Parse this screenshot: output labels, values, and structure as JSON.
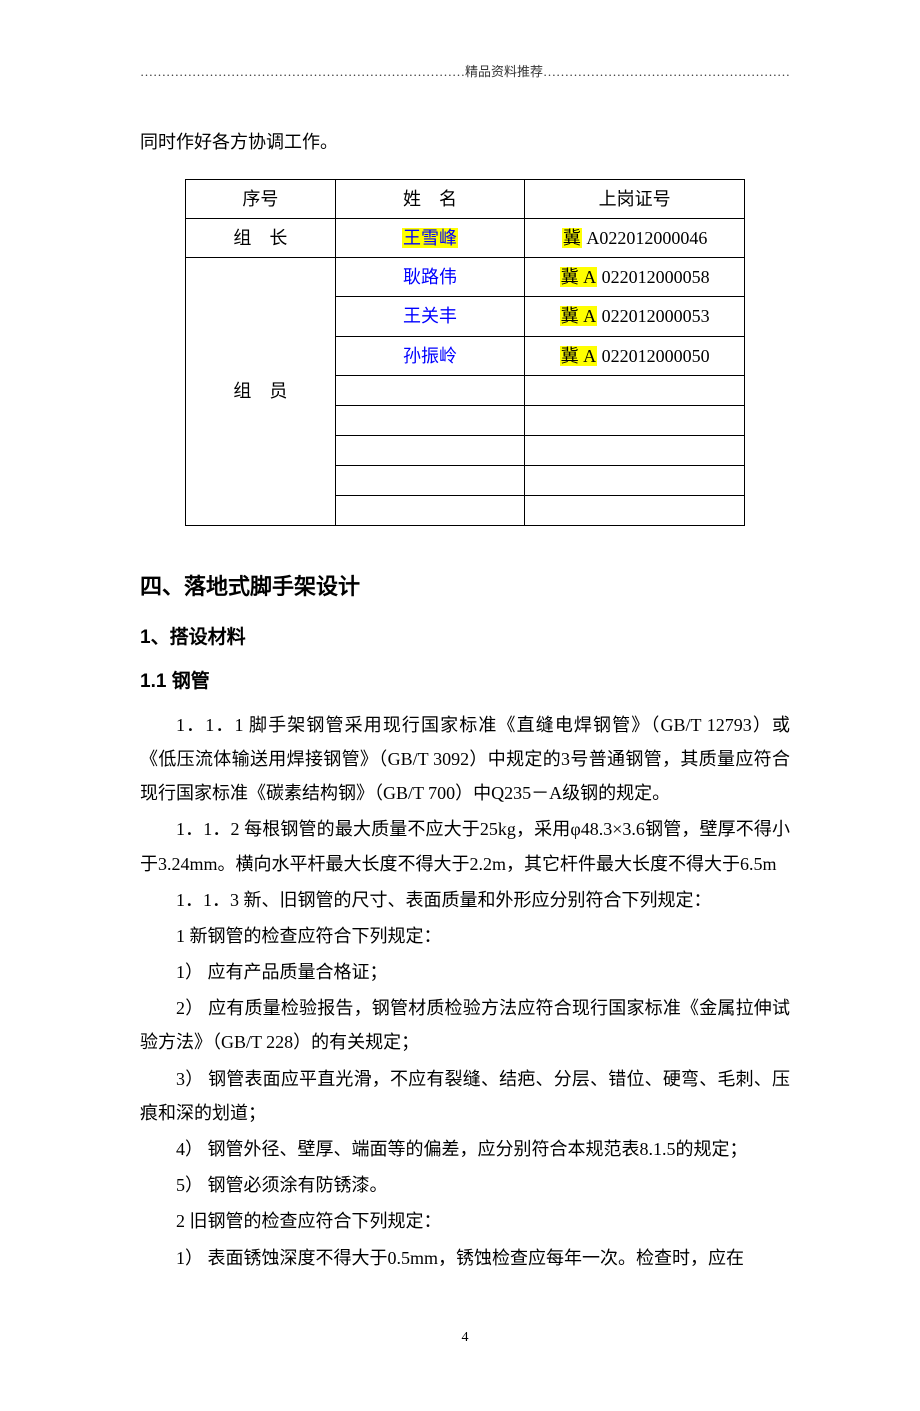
{
  "header_rule": "…………………………………………………………………精品资料推荐…………………………………………………",
  "intro": "同时作好各方协调工作。",
  "table": {
    "header": {
      "seq": "序号",
      "name": "姓　名",
      "cert": "上岗证号"
    },
    "leader_label": "组　长",
    "member_label": "组　员",
    "rows": [
      {
        "name": "王雪峰",
        "cert_prefix": "冀",
        "cert_rest": " A022012000046",
        "hl_name": true,
        "hl_prefix": true
      },
      {
        "name": "耿路伟",
        "cert_prefix": "冀 A",
        "cert_rest": " 022012000058",
        "hl_name": false,
        "hl_prefix": true
      },
      {
        "name": "王关丰",
        "cert_prefix": "冀 A",
        "cert_rest": " 022012000053",
        "hl_name": false,
        "hl_prefix": true
      },
      {
        "name": "孙振岭",
        "cert_prefix": "冀 A",
        "cert_rest": " 022012000050",
        "hl_name": false,
        "hl_prefix": true
      }
    ],
    "empty_member_rows": 5
  },
  "section_title": "四、落地式脚手架设计",
  "sub1_title": "1、搭设材料",
  "sub2_title": "1.1 钢管",
  "paras": [
    "1．1．1 脚手架钢管采用现行国家标准《直缝电焊钢管》（GB/T 12793）或《低压流体输送用焊接钢管》（GB/T 3092）中规定的3号普通钢管，其质量应符合现行国家标准《碳素结构钢》（GB/T 700）中Q235－A级钢的规定。",
    "1．1．2 每根钢管的最大质量不应大于25kg，采用φ48.3×3.6钢管，壁厚不得小于3.24mm。横向水平杆最大长度不得大于2.2m，其它杆件最大长度不得大于6.5m",
    "1．1．3 新、旧钢管的尺寸、表面质量和外形应分别符合下列规定：",
    "1 新钢管的检查应符合下列规定：",
    "1）  应有产品质量合格证；",
    "2）  应有质量检验报告，钢管材质检验方法应符合现行国家标准《金属拉伸试验方法》（GB/T 228）的有关规定；",
    "3）  钢管表面应平直光滑，不应有裂缝、结疤、分层、错位、硬弯、毛刺、压痕和深的划道；",
    "4）  钢管外径、壁厚、端面等的偏差，应分别符合本规范表8.1.5的规定；",
    "5）  钢管必须涂有防锈漆。",
    "2 旧钢管的检查应符合下列规定：",
    "1）  表面锈蚀深度不得大于0.5mm，锈蚀检查应每年一次。检查时，应在"
  ],
  "page_number": "4"
}
